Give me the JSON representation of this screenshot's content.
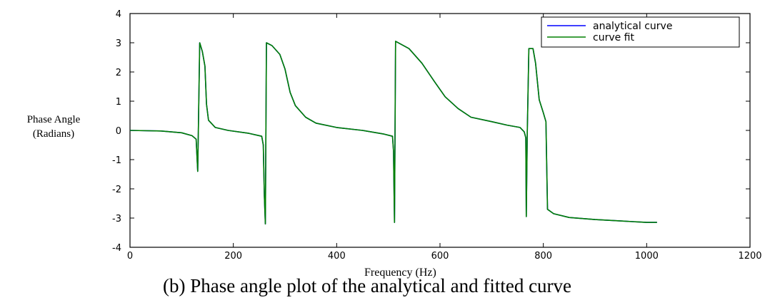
{
  "figure": {
    "caption": "(b) Phase angle plot of the analytical and fitted curve"
  },
  "chart_data": {
    "type": "line",
    "title": "",
    "xlabel": "Frequency (Hz)",
    "ylabel_lines": [
      "Phase Angle",
      "(Radians)"
    ],
    "xlim": [
      0,
      1200
    ],
    "ylim": [
      -4,
      4
    ],
    "xticks": [
      0,
      200,
      400,
      600,
      800,
      1000,
      1200
    ],
    "yticks": [
      -4,
      -3,
      -2,
      -1,
      0,
      1,
      2,
      3,
      4
    ],
    "grid": false,
    "legend_position": "top-right",
    "series": [
      {
        "name": "analytical curve",
        "color": "#0000ff",
        "points": [
          [
            0,
            0
          ],
          [
            60,
            -0.02
          ],
          [
            100,
            -0.08
          ],
          [
            120,
            -0.18
          ],
          [
            128,
            -0.3
          ],
          [
            131,
            -1.4
          ],
          [
            133,
            0.8
          ],
          [
            135,
            3.0
          ],
          [
            140,
            2.7
          ],
          [
            145,
            2.2
          ],
          [
            148,
            0.9
          ],
          [
            152,
            0.35
          ],
          [
            165,
            0.1
          ],
          [
            190,
            0
          ],
          [
            230,
            -0.1
          ],
          [
            255,
            -0.2
          ],
          [
            258,
            -0.5
          ],
          [
            260,
            -2.25
          ],
          [
            262,
            -3.2
          ],
          [
            264,
            3.0
          ],
          [
            275,
            2.9
          ],
          [
            290,
            2.6
          ],
          [
            300,
            2.1
          ],
          [
            310,
            1.3
          ],
          [
            320,
            0.85
          ],
          [
            340,
            0.45
          ],
          [
            360,
            0.25
          ],
          [
            400,
            0.1
          ],
          [
            450,
            0
          ],
          [
            490,
            -0.12
          ],
          [
            508,
            -0.2
          ],
          [
            510,
            -0.7
          ],
          [
            512,
            -3.15
          ],
          [
            514,
            3.05
          ],
          [
            540,
            2.8
          ],
          [
            565,
            2.3
          ],
          [
            590,
            1.65
          ],
          [
            610,
            1.15
          ],
          [
            635,
            0.75
          ],
          [
            660,
            0.45
          ],
          [
            700,
            0.3
          ],
          [
            730,
            0.18
          ],
          [
            755,
            0.1
          ],
          [
            763,
            -0.05
          ],
          [
            766,
            -0.25
          ],
          [
            767,
            -2.95
          ],
          [
            769,
            -0.05
          ],
          [
            772,
            2.8
          ],
          [
            780,
            2.8
          ],
          [
            785,
            2.3
          ],
          [
            792,
            1.05
          ],
          [
            800,
            0.6
          ],
          [
            805,
            0.3
          ],
          [
            808,
            -2.7
          ],
          [
            820,
            -2.85
          ],
          [
            850,
            -2.98
          ],
          [
            900,
            -3.05
          ],
          [
            950,
            -3.1
          ],
          [
            1000,
            -3.15
          ],
          [
            1020,
            -3.15
          ]
        ]
      },
      {
        "name": "curve fit",
        "color": "#008000",
        "points": [
          [
            0,
            0
          ],
          [
            60,
            -0.02
          ],
          [
            100,
            -0.08
          ],
          [
            120,
            -0.18
          ],
          [
            128,
            -0.3
          ],
          [
            131,
            -1.4
          ],
          [
            133,
            0.8
          ],
          [
            135,
            3.0
          ],
          [
            140,
            2.7
          ],
          [
            145,
            2.2
          ],
          [
            148,
            0.9
          ],
          [
            152,
            0.35
          ],
          [
            165,
            0.1
          ],
          [
            190,
            0
          ],
          [
            230,
            -0.1
          ],
          [
            255,
            -0.2
          ],
          [
            258,
            -0.5
          ],
          [
            260,
            -2.25
          ],
          [
            262,
            -3.2
          ],
          [
            264,
            3.0
          ],
          [
            275,
            2.9
          ],
          [
            290,
            2.6
          ],
          [
            300,
            2.1
          ],
          [
            310,
            1.3
          ],
          [
            320,
            0.85
          ],
          [
            340,
            0.45
          ],
          [
            360,
            0.25
          ],
          [
            400,
            0.1
          ],
          [
            450,
            0
          ],
          [
            490,
            -0.12
          ],
          [
            508,
            -0.2
          ],
          [
            510,
            -0.7
          ],
          [
            512,
            -3.15
          ],
          [
            514,
            3.05
          ],
          [
            540,
            2.8
          ],
          [
            565,
            2.3
          ],
          [
            590,
            1.65
          ],
          [
            610,
            1.15
          ],
          [
            635,
            0.75
          ],
          [
            660,
            0.45
          ],
          [
            700,
            0.3
          ],
          [
            730,
            0.18
          ],
          [
            755,
            0.1
          ],
          [
            763,
            -0.05
          ],
          [
            766,
            -0.25
          ],
          [
            767,
            -2.95
          ],
          [
            769,
            -0.05
          ],
          [
            772,
            2.8
          ],
          [
            780,
            2.8
          ],
          [
            785,
            2.3
          ],
          [
            792,
            1.05
          ],
          [
            800,
            0.6
          ],
          [
            805,
            0.3
          ],
          [
            808,
            -2.7
          ],
          [
            820,
            -2.85
          ],
          [
            850,
            -2.98
          ],
          [
            900,
            -3.05
          ],
          [
            950,
            -3.1
          ],
          [
            1000,
            -3.15
          ],
          [
            1020,
            -3.15
          ]
        ]
      }
    ]
  }
}
